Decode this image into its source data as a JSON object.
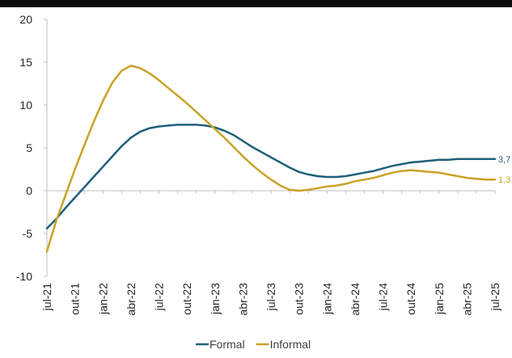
{
  "chart_data": {
    "type": "line",
    "x": [
      "jul-21",
      "ago-21",
      "set-21",
      "out-21",
      "nov-21",
      "dez-21",
      "jan-22",
      "fev-22",
      "mar-22",
      "abr-22",
      "mai-22",
      "jun-22",
      "jul-22",
      "ago-22",
      "set-22",
      "out-22",
      "nov-22",
      "dez-22",
      "jan-23",
      "fev-23",
      "mar-23",
      "abr-23",
      "mai-23",
      "jun-23",
      "jul-23",
      "ago-23",
      "set-23",
      "out-23",
      "nov-23",
      "dez-23",
      "jan-24",
      "fev-24",
      "mar-24",
      "abr-24",
      "mai-24",
      "jun-24",
      "jul-24",
      "ago-24",
      "set-24",
      "out-24",
      "nov-24",
      "dez-24",
      "jan-25",
      "fev-25",
      "mar-25",
      "abr-25",
      "mai-25",
      "jun-25",
      "jul-25"
    ],
    "x_tick_labels": [
      "jul-21",
      "out-21",
      "jan-22",
      "abr-22",
      "jul-22",
      "out-22",
      "jan-23",
      "abr-23",
      "jul-23",
      "out-23",
      "jan-24",
      "abr-24",
      "jul-24",
      "out-24",
      "jan-25",
      "abr-25",
      "jul-25"
    ],
    "series": [
      {
        "name": "Formal",
        "color": "#1f5f7a",
        "values": [
          -4.4,
          -3.3,
          -2.0,
          -0.8,
          0.4,
          1.6,
          2.8,
          4.0,
          5.2,
          6.2,
          6.9,
          7.3,
          7.5,
          7.6,
          7.7,
          7.7,
          7.7,
          7.6,
          7.4,
          7.0,
          6.5,
          5.8,
          5.1,
          4.5,
          3.9,
          3.3,
          2.7,
          2.2,
          1.9,
          1.7,
          1.6,
          1.6,
          1.7,
          1.9,
          2.1,
          2.3,
          2.6,
          2.9,
          3.1,
          3.3,
          3.4,
          3.5,
          3.6,
          3.6,
          3.7,
          3.7,
          3.7,
          3.7,
          3.7
        ],
        "end_label": "3,7"
      },
      {
        "name": "Informal",
        "color": "#c9a227",
        "values": [
          -7.1,
          -3.5,
          -0.5,
          2.5,
          5.3,
          8.0,
          10.5,
          12.6,
          14.0,
          14.6,
          14.3,
          13.7,
          12.9,
          12.0,
          11.1,
          10.2,
          9.2,
          8.2,
          7.2,
          6.2,
          5.1,
          4.0,
          3.0,
          2.1,
          1.3,
          0.6,
          0.1,
          0.0,
          0.1,
          0.3,
          0.5,
          0.6,
          0.8,
          1.1,
          1.3,
          1.5,
          1.8,
          2.1,
          2.3,
          2.4,
          2.3,
          2.2,
          2.1,
          1.9,
          1.7,
          1.5,
          1.4,
          1.3,
          1.3
        ],
        "end_label": "1,3"
      }
    ],
    "ylim": [
      -10,
      20
    ],
    "y_ticks": [
      -10,
      -5,
      0,
      5,
      10,
      15,
      20
    ],
    "y_tick_labels": [
      "-10",
      "-5",
      "0",
      "5",
      "10",
      "15",
      "20"
    ],
    "title": "",
    "xlabel": "",
    "ylabel": "",
    "legend_position": "bottom-center",
    "grid": false
  }
}
